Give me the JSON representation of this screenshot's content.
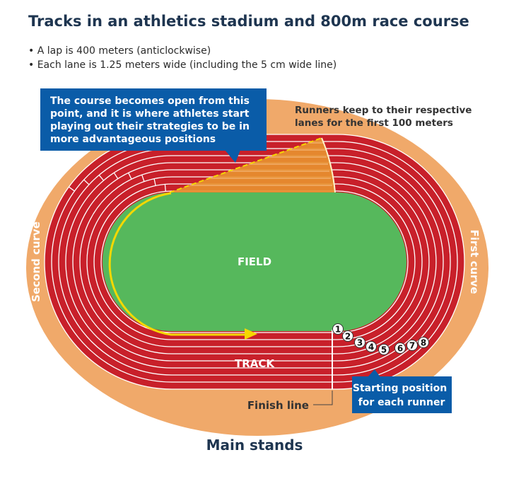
{
  "title": "Tracks in an athletics stadium and 800m race course",
  "bullets": [
    "• A lap is 400 meters (anticlockwise)",
    "• Each lane is 1.25 meters wide (including the 5 cm wide line)"
  ],
  "callout_open": [
    "The course becomes open from this",
    "point, and it is where athletes start",
    "playing out their strategies to be in",
    "more advantageous positions"
  ],
  "note_lanes": [
    "Runners keep to their respective",
    "lanes for the first 100 meters"
  ],
  "field_label": "FIELD",
  "track_label": "TRACK",
  "second_curve": "Second curve",
  "first_curve": "First curve",
  "finish_line": "Finish line",
  "callout_start": [
    "Starting position",
    "for each runner"
  ],
  "main_stands": "Main stands",
  "lane_numbers": [
    "1",
    "2",
    "3",
    "4",
    "5",
    "6",
    "7",
    "8"
  ],
  "colors": {
    "surround": "#f0a96a",
    "track": "#c8202a",
    "field": "#56b85c",
    "callout": "#0a5ca8",
    "route": "#f5d800",
    "open_zone": "#e8922f",
    "title": "#1e3550"
  }
}
